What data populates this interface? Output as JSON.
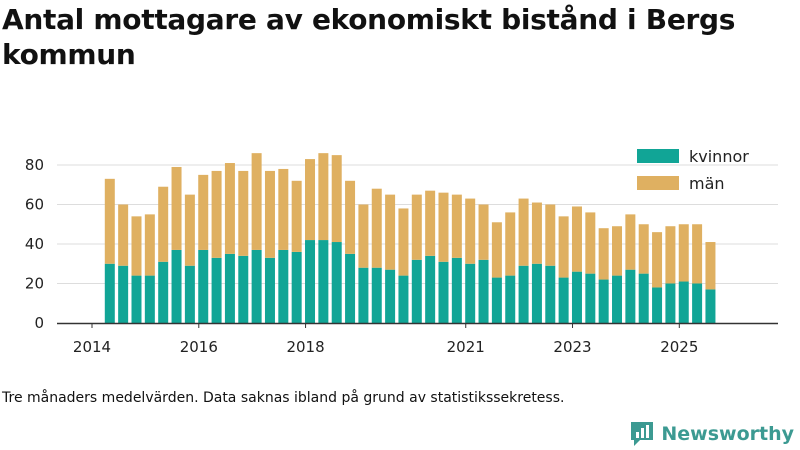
{
  "chart_data": {
    "type": "bar",
    "stacked": true,
    "title": "Antal mottagare av ekonomiskt bistånd i Bergs kommun",
    "xlabel": "",
    "ylabel": "",
    "ylim": [
      0,
      90
    ],
    "y_ticks": [
      0,
      20,
      40,
      60,
      80
    ],
    "x_ticks": [
      "2014",
      "2016",
      "2018",
      "2021",
      "2023",
      "2025"
    ],
    "grid": true,
    "legend_position": "top-right",
    "categories": [
      "2014-05",
      "2014-08",
      "2014-11",
      "2015-02",
      "2015-05",
      "2015-08",
      "2015-11",
      "2016-02",
      "2016-05",
      "2016-08",
      "2016-11",
      "2017-02",
      "2017-05",
      "2017-08",
      "2017-11",
      "2018-02",
      "2018-05",
      "2018-08",
      "2018-11",
      "2019-02",
      "2019-05",
      "2019-08",
      "2019-11",
      "2020-02",
      "2020-05",
      "2020-08",
      "2020-11",
      "2021-02",
      "2021-05",
      "2021-08",
      "2021-11",
      "2022-02",
      "2022-05",
      "2022-08",
      "2022-11",
      "2023-02",
      "2023-05",
      "2023-08",
      "2023-11",
      "2024-02",
      "2024-05",
      "2024-08",
      "2024-11",
      "2025-02",
      "2025-05",
      "2025-08"
    ],
    "series": [
      {
        "name": "kvinnor",
        "color": "#11a596",
        "values": [
          30,
          29,
          24,
          24,
          31,
          37,
          29,
          37,
          33,
          35,
          34,
          37,
          33,
          37,
          36,
          42,
          42,
          41,
          35,
          28,
          28,
          27,
          24,
          32,
          34,
          31,
          33,
          30,
          32,
          23,
          24,
          29,
          30,
          29,
          23,
          26,
          25,
          22,
          24,
          27,
          25,
          18,
          20,
          21,
          20,
          17
        ]
      },
      {
        "name": "män",
        "color": "#dfb061",
        "values": [
          43,
          31,
          30,
          31,
          38,
          42,
          36,
          38,
          44,
          46,
          43,
          49,
          44,
          41,
          36,
          41,
          44,
          44,
          37,
          32,
          40,
          38,
          34,
          33,
          33,
          35,
          32,
          33,
          28,
          28,
          32,
          34,
          31,
          31,
          31,
          33,
          31,
          26,
          25,
          28,
          25,
          28,
          29,
          29,
          30,
          24
        ]
      }
    ]
  },
  "footnote": "Tre månaders medelvärden. Data saknas ibland på grund av statistikssekretess.",
  "brand": {
    "name": "Newsworthy"
  }
}
